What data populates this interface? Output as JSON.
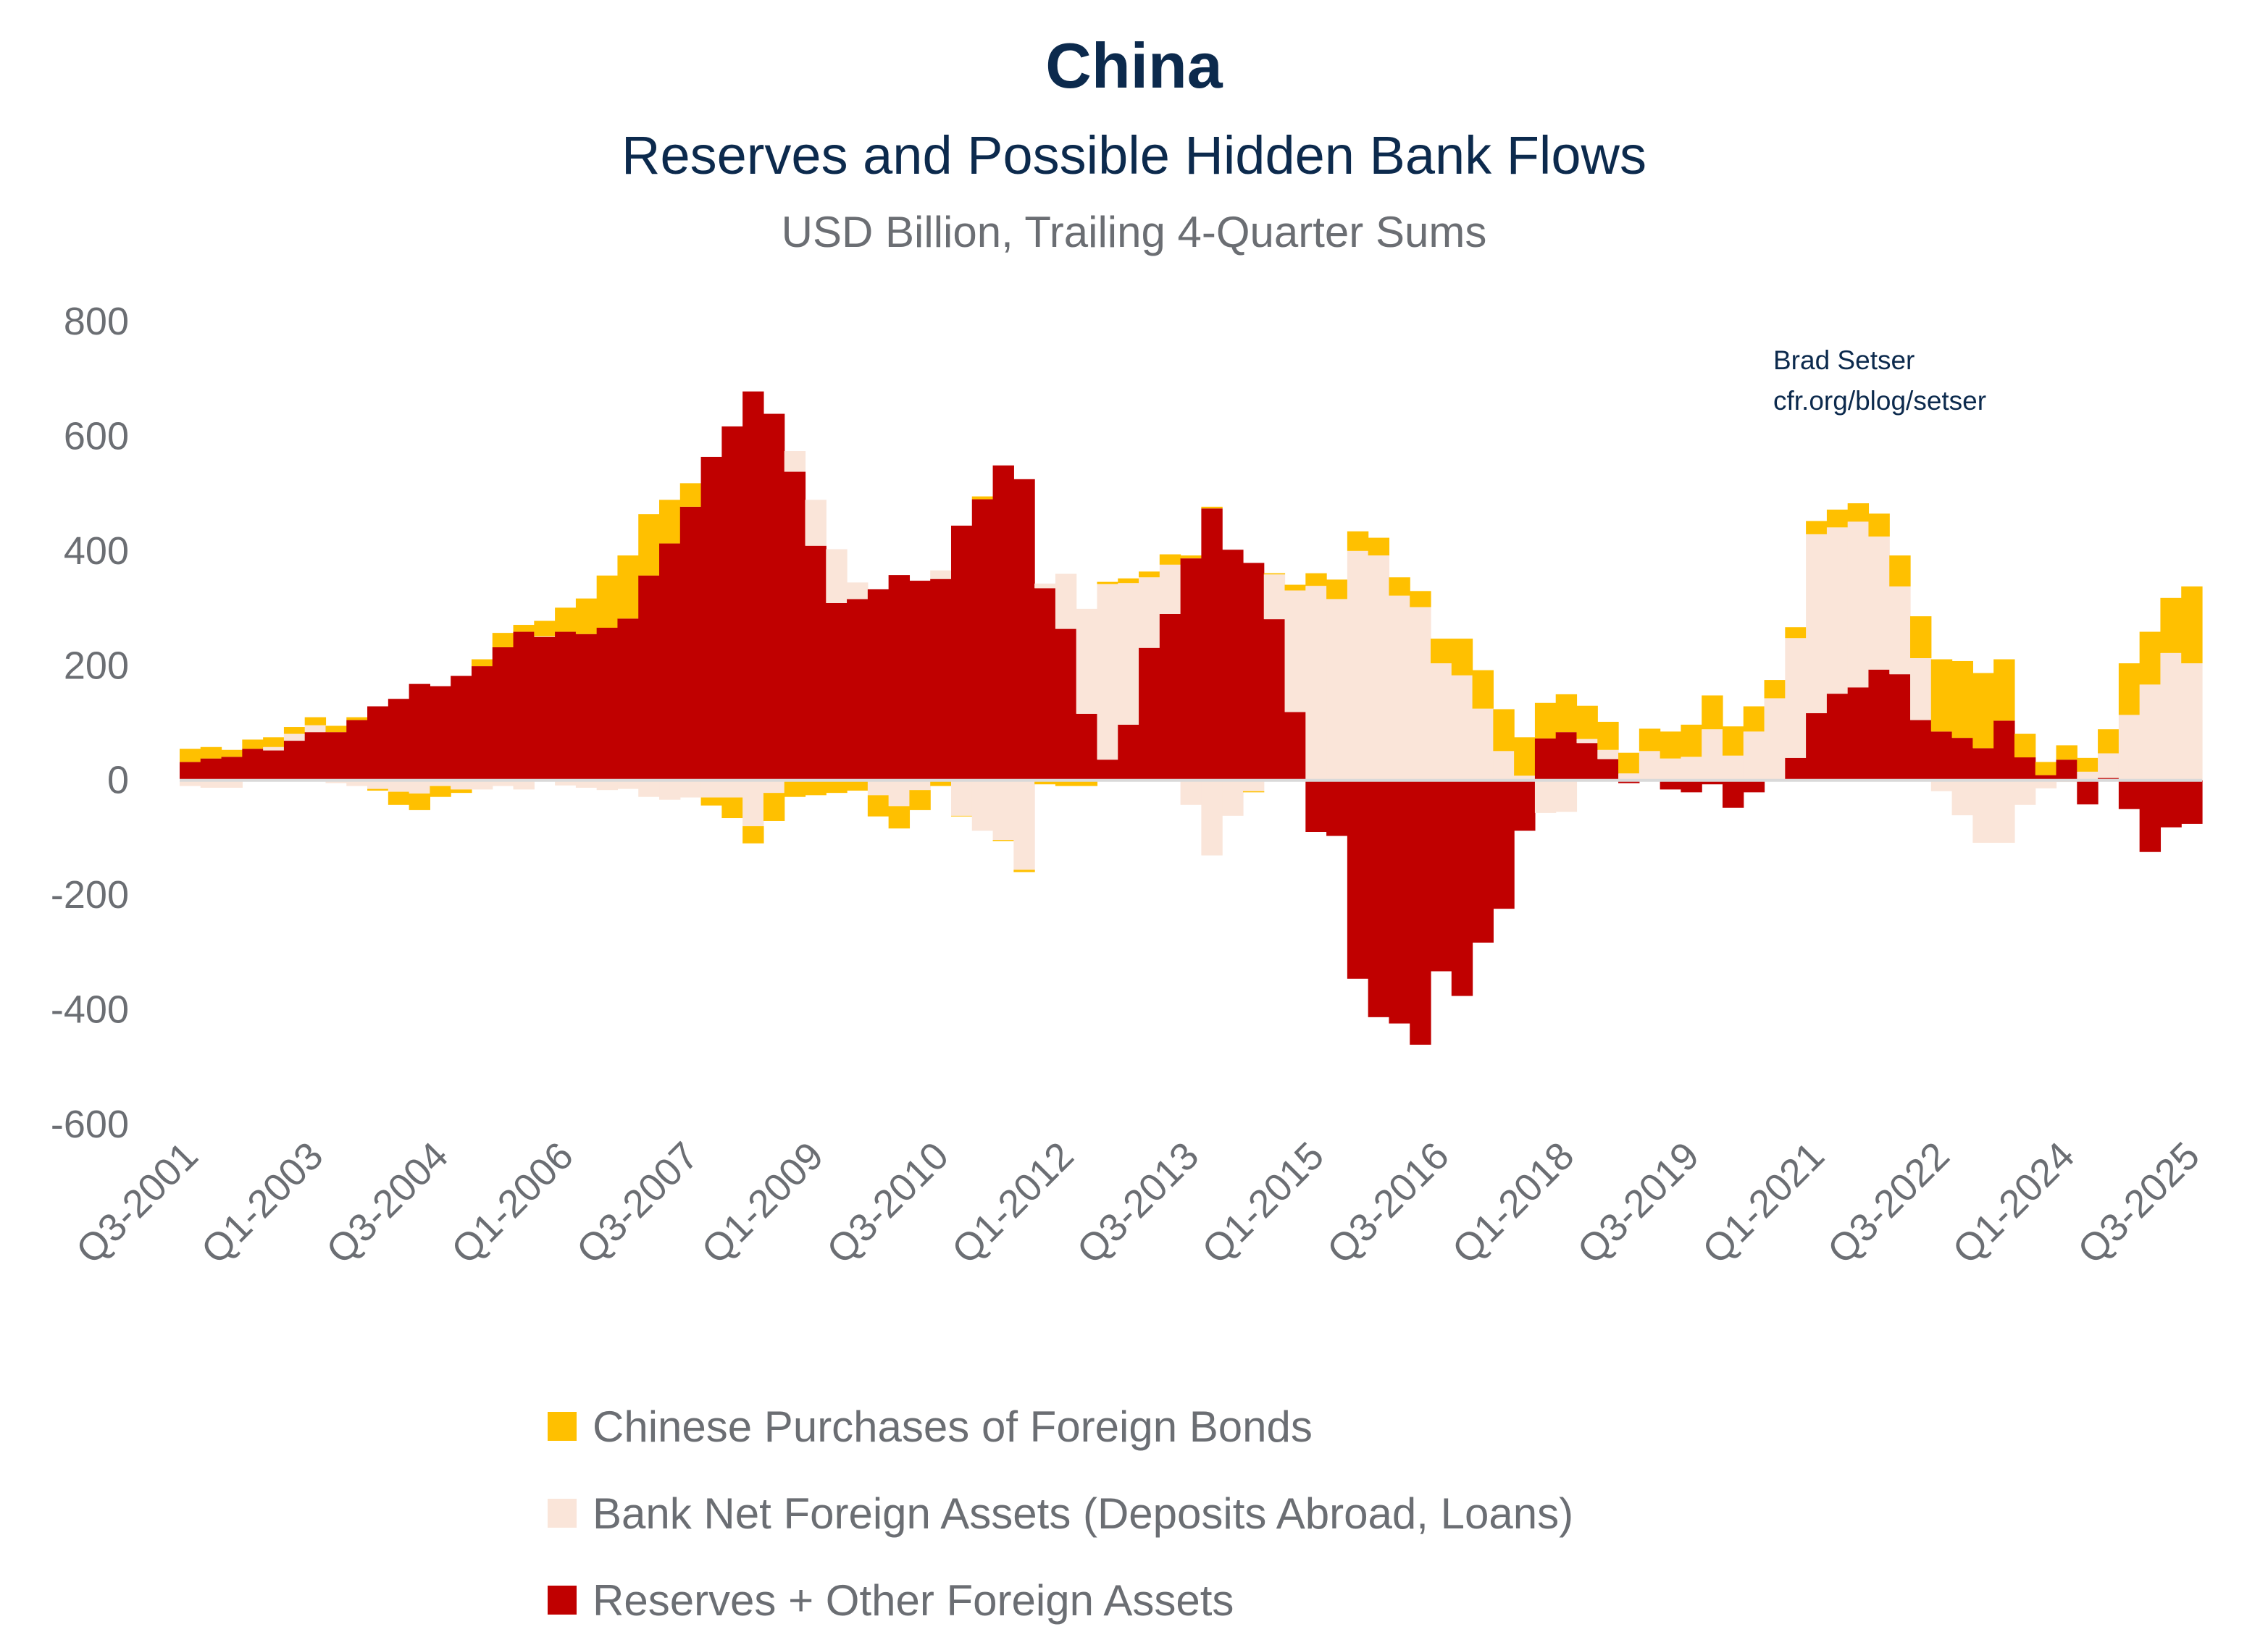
{
  "header": {
    "title": "China",
    "subtitle": "Reserves and Possible Hidden Bank Flows",
    "units": "USD Billion, Trailing 4-Quarter Sums"
  },
  "annotation": {
    "author": "Brad Setser",
    "source": "cfr.org/blog/setser"
  },
  "colors": {
    "bonds": "#FFC000",
    "bank": "#FAE5D9",
    "reserves": "#C00000",
    "text": "#0c2a4d",
    "axis_text": "#6b6e73",
    "zero_line": "#d9d9d9"
  },
  "chart_data": {
    "type": "bar",
    "stacked": true,
    "title": "China",
    "subtitle": "Reserves and Possible Hidden Bank Flows",
    "ylabel": "USD Billion, Trailing 4-Quarter Sums",
    "ylim": [
      -600,
      800
    ],
    "yticks": [
      800,
      600,
      400,
      200,
      0,
      -200,
      -400,
      -600
    ],
    "xtick_labels": [
      "Q3-2001",
      "Q1-2003",
      "Q3-2004",
      "Q1-2006",
      "Q3-2007",
      "Q1-2009",
      "Q3-2010",
      "Q1-2012",
      "Q3-2013",
      "Q1-2015",
      "Q3-2016",
      "Q1-2018",
      "Q3-2019",
      "Q1-2021",
      "Q3-2022",
      "Q1-2024",
      "Q3-2025"
    ],
    "xtick_every": 6,
    "legend_position": "bottom",
    "categories": [
      "Q3-2001",
      "Q4-2001",
      "Q1-2002",
      "Q2-2002",
      "Q3-2002",
      "Q4-2002",
      "Q1-2003",
      "Q2-2003",
      "Q3-2003",
      "Q4-2003",
      "Q1-2004",
      "Q2-2004",
      "Q3-2004",
      "Q4-2004",
      "Q1-2005",
      "Q2-2005",
      "Q3-2005",
      "Q4-2005",
      "Q1-2006",
      "Q2-2006",
      "Q3-2006",
      "Q4-2006",
      "Q1-2007",
      "Q2-2007",
      "Q3-2007",
      "Q4-2007",
      "Q1-2008",
      "Q2-2008",
      "Q3-2008",
      "Q4-2008",
      "Q1-2009",
      "Q2-2009",
      "Q3-2009",
      "Q4-2009",
      "Q1-2010",
      "Q2-2010",
      "Q3-2010",
      "Q4-2010",
      "Q1-2011",
      "Q2-2011",
      "Q3-2011",
      "Q4-2011",
      "Q1-2012",
      "Q2-2012",
      "Q3-2012",
      "Q4-2012",
      "Q1-2013",
      "Q2-2013",
      "Q3-2013",
      "Q4-2013",
      "Q1-2014",
      "Q2-2014",
      "Q3-2014",
      "Q4-2014",
      "Q1-2015",
      "Q2-2015",
      "Q3-2015",
      "Q4-2015",
      "Q1-2016",
      "Q2-2016",
      "Q3-2016",
      "Q4-2016",
      "Q1-2017",
      "Q2-2017",
      "Q3-2017",
      "Q4-2017",
      "Q1-2018",
      "Q2-2018",
      "Q3-2018",
      "Q4-2018",
      "Q1-2019",
      "Q2-2019",
      "Q3-2019",
      "Q4-2019",
      "Q1-2020",
      "Q2-2020",
      "Q3-2020",
      "Q4-2020",
      "Q1-2021",
      "Q2-2021",
      "Q3-2021",
      "Q4-2021",
      "Q1-2022",
      "Q2-2022",
      "Q3-2022",
      "Q4-2022",
      "Q1-2023",
      "Q2-2023",
      "Q3-2023",
      "Q4-2023",
      "Q1-2024",
      "Q2-2024",
      "Q3-2024",
      "Q4-2024",
      "Q1-2025",
      "Q2-2025",
      "Q3-2025"
    ],
    "series": [
      {
        "name": "Reserves + Other Foreign Assets",
        "key": "reserves",
        "values": [
          32,
          38,
          41,
          55,
          52,
          69,
          84,
          84,
          105,
          129,
          142,
          168,
          164,
          182,
          199,
          232,
          259,
          250,
          259,
          255,
          266,
          282,
          357,
          413,
          477,
          564,
          617,
          678,
          639,
          538,
          409,
          309,
          316,
          333,
          358,
          348,
          351,
          444,
          490,
          549,
          525,
          335,
          264,
          116,
          36,
          97,
          231,
          290,
          387,
          474,
          402,
          379,
          281,
          119,
          -90,
          -97,
          -346,
          -413,
          -424,
          -461,
          -333,
          -376,
          -283,
          -224,
          -88,
          73,
          84,
          65,
          37,
          -5,
          0,
          -16,
          -21,
          -7,
          -48,
          -21,
          0,
          39,
          117,
          151,
          162,
          193,
          185,
          105,
          85,
          74,
          56,
          104,
          40,
          9,
          36,
          -42,
          4,
          -50,
          -125,
          -82,
          -76
        ]
      },
      {
        "name": "Bank Net Foreign Assets (Deposits Abroad, Loans)",
        "key": "bank",
        "values": [
          -10,
          -13,
          -13,
          0,
          6,
          12,
          12,
          -5,
          -10,
          -15,
          -20,
          -23,
          -10,
          -16,
          -16,
          -10,
          -16,
          1,
          -9,
          -13,
          -17,
          -15,
          -29,
          -34,
          -30,
          -30,
          -30,
          -80,
          -22,
          36,
          80,
          94,
          29,
          -26,
          -45,
          -17,
          15,
          -62,
          -88,
          -104,
          -156,
          8,
          96,
          183,
          306,
          247,
          123,
          86,
          -43,
          -131,
          -62,
          -19,
          78,
          212,
          339,
          316,
          400,
          392,
          322,
          302,
          204,
          183,
          125,
          51,
          8,
          -57,
          -55,
          7,
          16,
          12,
          51,
          38,
          41,
          89,
          43,
          85,
          143,
          209,
          312,
          290,
          289,
          232,
          153,
          108,
          -19,
          -61,
          -109,
          -109,
          -43,
          -14,
          -3,
          15,
          43,
          114,
          167,
          222,
          204
        ]
      },
      {
        "name": "Chinese Purchases of Foreign Bonds",
        "key": "bonds",
        "values": [
          23,
          20,
          12,
          16,
          17,
          12,
          14,
          11,
          5,
          -3,
          -23,
          -29,
          -19,
          -6,
          12,
          25,
          12,
          27,
          42,
          62,
          91,
          110,
          107,
          76,
          41,
          -14,
          -36,
          -30,
          -49,
          -29,
          -26,
          -22,
          -18,
          -37,
          -39,
          -35,
          -10,
          -1,
          5,
          -2,
          -4,
          -7,
          -10,
          -10,
          4,
          8,
          10,
          18,
          5,
          3,
          0,
          -2,
          2,
          10,
          22,
          34,
          34,
          31,
          32,
          28,
          43,
          64,
          67,
          73,
          67,
          62,
          66,
          58,
          49,
          36,
          39,
          47,
          56,
          59,
          51,
          44,
          32,
          19,
          23,
          31,
          32,
          40,
          54,
          73,
          126,
          134,
          131,
          107,
          41,
          23,
          25,
          24,
          42,
          90,
          92,
          96,
          134
        ]
      }
    ]
  },
  "legend": [
    {
      "label": "Chinese Purchases of Foreign Bonds",
      "key": "bonds"
    },
    {
      "label": "Bank Net Foreign Assets (Deposits Abroad, Loans)",
      "key": "bank"
    },
    {
      "label": "Reserves + Other Foreign Assets",
      "key": "reserves"
    }
  ]
}
